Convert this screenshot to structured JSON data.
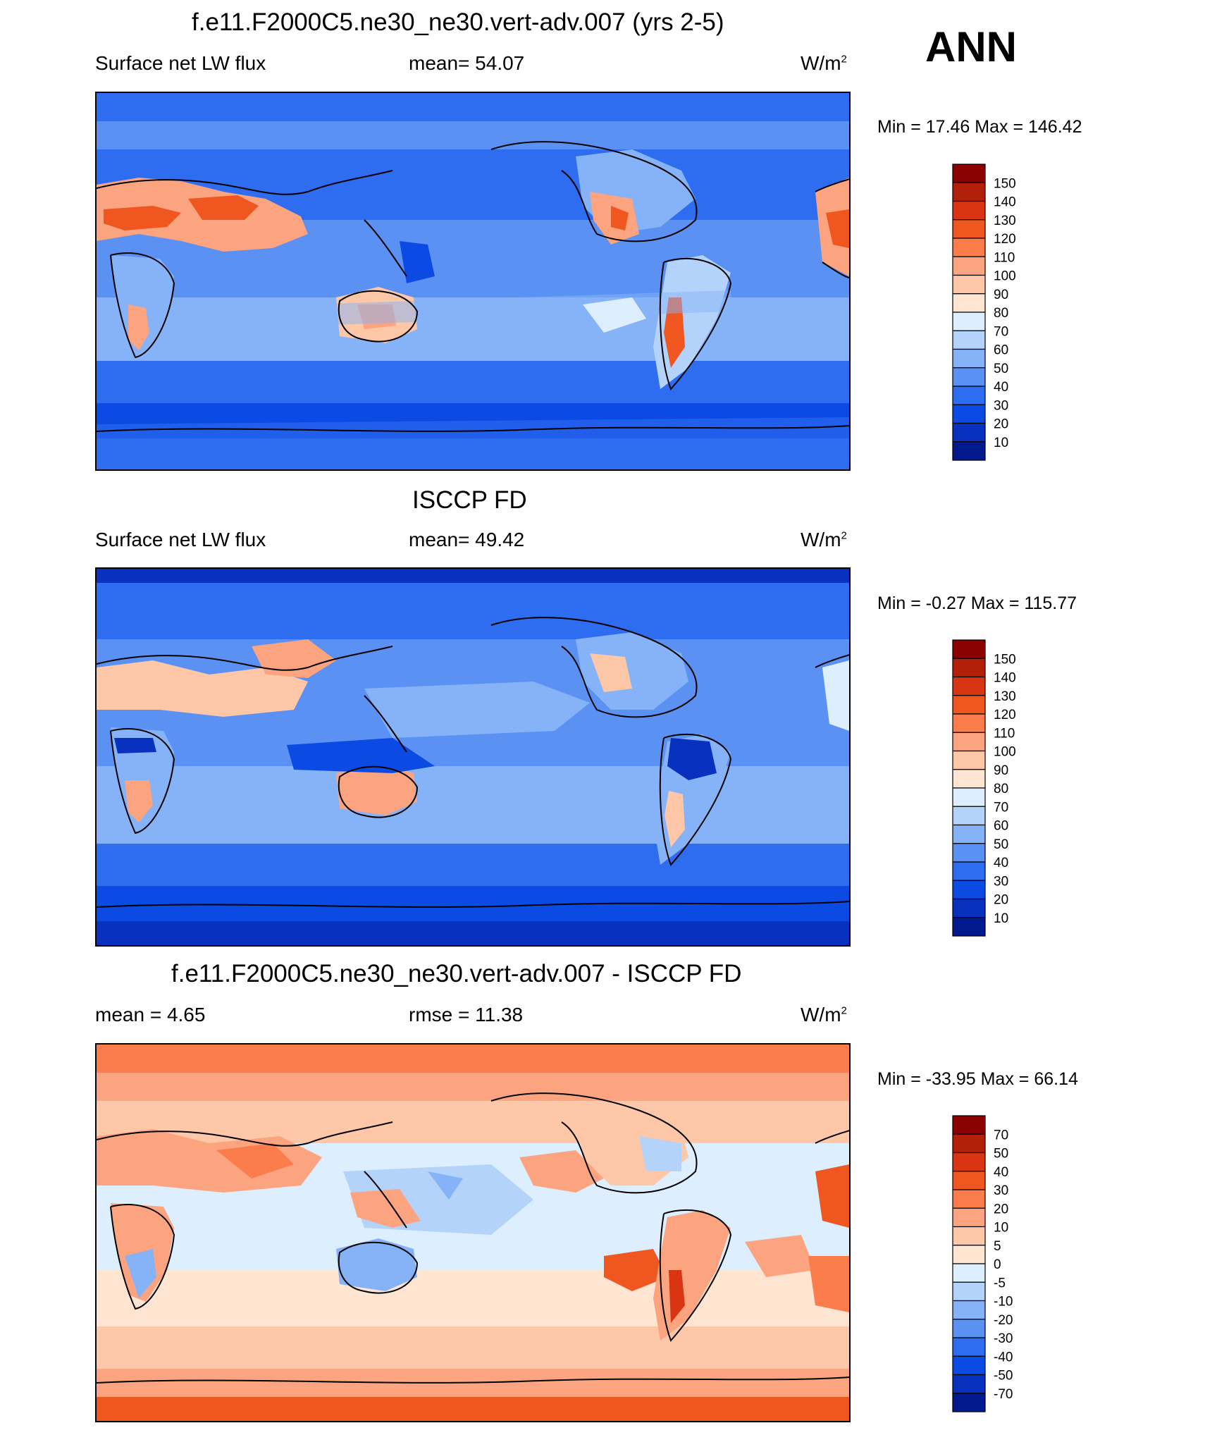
{
  "season": "ANN",
  "chart_data": [
    {
      "type": "heatmap",
      "title": "f.e11.F2000C5.ne30_ne30.vert-adv.007 (yrs 2-5)",
      "left_label": "Surface net LW flux",
      "center_label": "mean=  54.07",
      "units": "W/m",
      "units_exp": "2",
      "minmax": "Min =  17.46 Max = 146.42",
      "mean": 54.07,
      "min": 17.46,
      "max": 146.42,
      "colorbar": {
        "levels": [
          "150",
          "140",
          "130",
          "120",
          "110",
          "100",
          "90",
          "80",
          "70",
          "60",
          "50",
          "40",
          "30",
          "20",
          "10"
        ],
        "colors": [
          "#8b0000",
          "#b3200a",
          "#d93512",
          "#f0561f",
          "#fb7d4c",
          "#fca37f",
          "#fdc7a8",
          "#fde5d2",
          "#ddeeff",
          "#b4d3fb",
          "#86b3f7",
          "#5a91f3",
          "#2e6cf0",
          "#0b4ae3",
          "#0831bf",
          "#031a8f"
        ]
      }
    },
    {
      "type": "heatmap",
      "title": "ISCCP FD",
      "left_label": "Surface net LW flux",
      "center_label": "mean=  49.42",
      "units": "W/m",
      "units_exp": "2",
      "minmax": "Min =  -0.27 Max = 115.77",
      "mean": 49.42,
      "min": -0.27,
      "max": 115.77,
      "colorbar": {
        "levels": [
          "150",
          "140",
          "130",
          "120",
          "110",
          "100",
          "90",
          "80",
          "70",
          "60",
          "50",
          "40",
          "30",
          "20",
          "10"
        ],
        "colors": [
          "#8b0000",
          "#b3200a",
          "#d93512",
          "#f0561f",
          "#fb7d4c",
          "#fca37f",
          "#fdc7a8",
          "#fde5d2",
          "#ddeeff",
          "#b4d3fb",
          "#86b3f7",
          "#5a91f3",
          "#2e6cf0",
          "#0b4ae3",
          "#0831bf",
          "#031a8f"
        ]
      }
    },
    {
      "type": "heatmap",
      "title": "f.e11.F2000C5.ne30_ne30.vert-adv.007 - ISCCP FD",
      "left_label": "mean =   4.65",
      "center_label": "rmse =  11.38",
      "units": "W/m",
      "units_exp": "2",
      "minmax": "Min = -33.95 Max =  66.14",
      "mean": 4.65,
      "rmse": 11.38,
      "min": -33.95,
      "max": 66.14,
      "colorbar": {
        "levels": [
          "70",
          "50",
          "40",
          "30",
          "20",
          "10",
          "5",
          "0",
          "-5",
          "-10",
          "-20",
          "-30",
          "-40",
          "-50",
          "-70"
        ],
        "colors": [
          "#8b0000",
          "#b3200a",
          "#d93512",
          "#f0561f",
          "#fb7d4c",
          "#fca37f",
          "#fdc7a8",
          "#fde5d2",
          "#ddeeff",
          "#b4d3fb",
          "#86b3f7",
          "#5a91f3",
          "#2e6cf0",
          "#0b4ae3",
          "#0831bf",
          "#031a8f"
        ]
      }
    }
  ]
}
